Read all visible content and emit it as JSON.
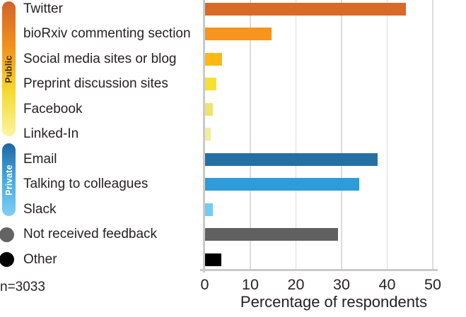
{
  "chart_data": {
    "type": "bar",
    "orientation": "horizontal",
    "title": "",
    "xlabel": "Percentage of respondents",
    "xlim": [
      0,
      50
    ],
    "xticks": [
      0,
      10,
      20,
      30,
      40,
      50
    ],
    "grid": "vertical",
    "legend_position": "left",
    "categories": [
      "Twitter",
      "bioRxiv commenting section",
      "Social media sites or blog",
      "Preprint discussion sites",
      "Facebook",
      "Linked-In",
      "Email",
      "Talking to colleagues",
      "Slack",
      "Not received feedback",
      "Other"
    ],
    "values": [
      44,
      14.5,
      3.7,
      2.5,
      1.7,
      1.3,
      37.8,
      33.8,
      1.7,
      29.2,
      3.6
    ],
    "bar_colors": [
      "#d96a27",
      "#f7941e",
      "#fdb813",
      "#f5e131",
      "#efe26e",
      "#f2ec9b",
      "#2470a5",
      "#2d9cd8",
      "#72ccf4",
      "#606060",
      "#000000"
    ],
    "group_of_category": [
      "public",
      "public",
      "public",
      "public",
      "public",
      "public",
      "private",
      "private",
      "private",
      "none",
      "none"
    ]
  },
  "legend": {
    "public": {
      "label": "Public",
      "gradient": [
        "#d2622c",
        "#f0921e",
        "#f5d932",
        "#fbf5a0"
      ],
      "text_color": "#3d2b12"
    },
    "private": {
      "label": "Private",
      "gradient": [
        "#1e67a3",
        "#4aa8dc",
        "#7ed0f6"
      ],
      "text_color": "#ffffff"
    },
    "not_received_marker_color": "#636363",
    "other_marker_color": "#000000"
  },
  "note": "n=3033",
  "colors": {
    "axis": "#c9c9c9",
    "grid": "#dcdcdc",
    "text": "#262223",
    "background": "#ffffff"
  }
}
